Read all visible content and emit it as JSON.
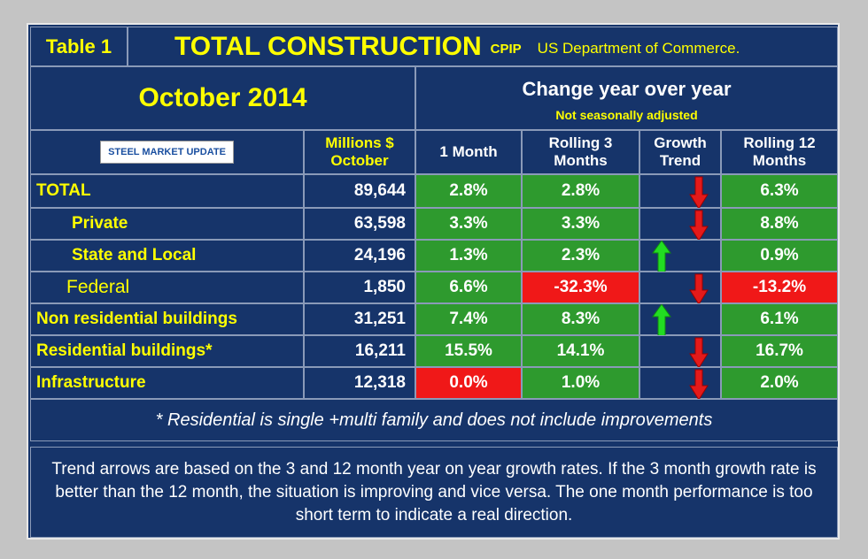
{
  "header": {
    "table_label": "Table 1",
    "title": "TOTAL CONSTRUCTION",
    "title_suffix": "CPIP",
    "source": "US Department of Commerce.",
    "period": "October 2014",
    "change_heading": "Change year over year",
    "change_note": "Not seasonally adjusted",
    "logo": "STEEL MARKET UPDATE"
  },
  "columns": [
    "Millions $ October",
    "1 Month",
    "Rolling 3 Months",
    "Growth Trend",
    "Rolling 12 Months"
  ],
  "rows": [
    {
      "label": "TOTAL",
      "millions": "89,644",
      "cells": [
        "2.8%",
        "2.8%",
        "6.3%"
      ],
      "fills": [
        "#2e9a2e",
        "#2e9a2e",
        "#2e9a2e"
      ],
      "trend": "down"
    },
    {
      "label": "Private",
      "millions": "63,598",
      "cells": [
        "3.3%",
        "3.3%",
        "8.8%"
      ],
      "fills": [
        "#2e9a2e",
        "#2e9a2e",
        "#2e9a2e"
      ],
      "trend": "down"
    },
    {
      "label": "State and Local",
      "millions": "24,196",
      "cells": [
        "1.3%",
        "2.3%",
        "0.9%"
      ],
      "fills": [
        "#2e9a2e",
        "#2e9a2e",
        "#2e9a2e"
      ],
      "trend": "up"
    },
    {
      "label": "Federal",
      "millions": "1,850",
      "cells": [
        "6.6%",
        "-32.3%",
        "-13.2%"
      ],
      "fills": [
        "#2e9a2e",
        "#f01818",
        "#f01818"
      ],
      "trend": "down"
    },
    {
      "label": "Non residential buildings",
      "millions": "31,251",
      "cells": [
        "7.4%",
        "8.3%",
        "6.1%"
      ],
      "fills": [
        "#2e9a2e",
        "#2e9a2e",
        "#2e9a2e"
      ],
      "trend": "up"
    },
    {
      "label": "Residential buildings*",
      "millions": "16,211",
      "cells": [
        "15.5%",
        "14.1%",
        "16.7%"
      ],
      "fills": [
        "#2e9a2e",
        "#2e9a2e",
        "#2e9a2e"
      ],
      "trend": "down"
    },
    {
      "label": "Infrastructure",
      "millions": "12,318",
      "cells": [
        "0.0%",
        "1.0%",
        "2.0%"
      ],
      "fills": [
        "#f01818",
        "#2e9a2e",
        "#2e9a2e"
      ],
      "trend": "down"
    }
  ],
  "footnote": "* Residential is single +multi family and does not include improvements",
  "explanation": "Trend arrows are based on the 3 and 12 month year on year growth rates. If the 3 month growth rate is better than the 12 month, the situation is improving and vice versa. The one month performance is too short term to indicate a real direction."
}
